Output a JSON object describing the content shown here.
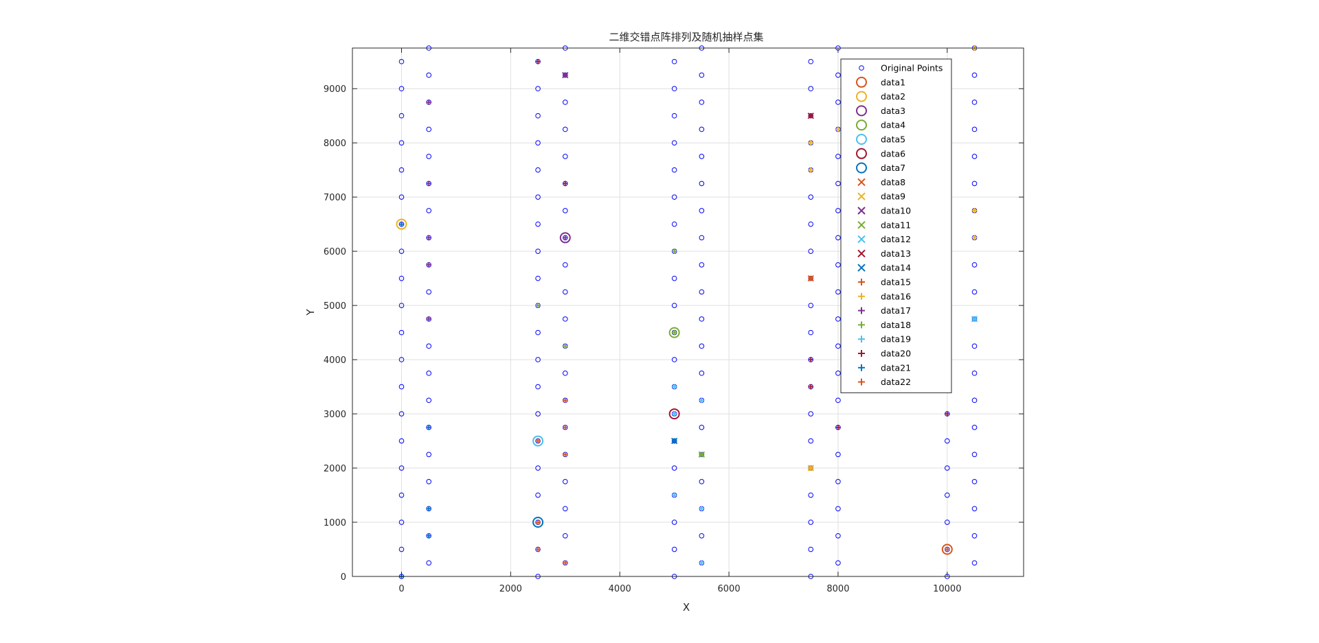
{
  "chart_data": {
    "type": "scatter",
    "title": "二维交错点阵排列及随机抽样点集",
    "xlabel": "X",
    "ylabel": "Y",
    "xlim": [
      -900,
      11400
    ],
    "ylim": [
      0,
      9750
    ],
    "xticks": [
      0,
      2000,
      4000,
      6000,
      8000,
      10000
    ],
    "yticks": [
      0,
      1000,
      2000,
      3000,
      4000,
      5000,
      6000,
      7000,
      8000,
      9000
    ],
    "grid": true,
    "legend_position": "top-right",
    "original_points": {
      "name": "Original Points",
      "color": "#0000ff",
      "columns_a_x": [
        0,
        2500,
        5000,
        7500,
        10000
      ],
      "columns_a_y_range": [
        0,
        9500,
        500
      ],
      "columns_b_x": [
        500,
        3000,
        5500,
        8000,
        10500
      ],
      "columns_b_y_range": [
        250,
        9750,
        500
      ]
    },
    "series": [
      {
        "name": "data1",
        "marker": "circle",
        "color": "#d95319",
        "points": [
          [
            10000,
            500
          ]
        ]
      },
      {
        "name": "data2",
        "marker": "circle",
        "color": "#edb120",
        "points": [
          [
            0,
            6500
          ]
        ]
      },
      {
        "name": "data3",
        "marker": "circle",
        "color": "#7e2f8e",
        "points": [
          [
            3000,
            6250
          ]
        ]
      },
      {
        "name": "data4",
        "marker": "circle",
        "color": "#77ac30",
        "points": [
          [
            5000,
            4500
          ]
        ]
      },
      {
        "name": "data5",
        "marker": "circle",
        "color": "#4dbeee",
        "points": [
          [
            2500,
            2500
          ]
        ]
      },
      {
        "name": "data6",
        "marker": "circle",
        "color": "#a2142f",
        "points": [
          [
            5000,
            3000
          ]
        ]
      },
      {
        "name": "data7",
        "marker": "circle",
        "color": "#0072bd",
        "points": [
          [
            2500,
            1000
          ]
        ]
      },
      {
        "name": "data8",
        "marker": "x",
        "color": "#d95319",
        "points": [
          [
            7500,
            5500
          ]
        ]
      },
      {
        "name": "data9",
        "marker": "x",
        "color": "#edb120",
        "points": [
          [
            7500,
            2000
          ]
        ]
      },
      {
        "name": "data10",
        "marker": "x",
        "color": "#7e2f8e",
        "points": [
          [
            3000,
            9250
          ]
        ]
      },
      {
        "name": "data11",
        "marker": "x",
        "color": "#77ac30",
        "points": [
          [
            5500,
            2250
          ]
        ]
      },
      {
        "name": "data12",
        "marker": "x",
        "color": "#4dbeee",
        "points": [
          [
            10500,
            4750
          ]
        ]
      },
      {
        "name": "data13",
        "marker": "x",
        "color": "#a2142f",
        "points": [
          [
            7500,
            8500
          ]
        ]
      },
      {
        "name": "data14",
        "marker": "x",
        "color": "#0072bd",
        "points": [
          [
            5000,
            2500
          ]
        ]
      },
      {
        "name": "data15",
        "marker": "plus",
        "color": "#d95319",
        "points": [
          [
            10000,
            500
          ],
          [
            2500,
            2500
          ],
          [
            2500,
            1000
          ]
        ]
      },
      {
        "name": "data16",
        "marker": "plus",
        "color": "#edb120",
        "points": [
          [
            10500,
            9750
          ],
          [
            7500,
            8000
          ],
          [
            8000,
            8250
          ],
          [
            7500,
            7500
          ],
          [
            10500,
            6750
          ],
          [
            10500,
            6250
          ],
          [
            7500,
            2000
          ]
        ]
      },
      {
        "name": "data17",
        "marker": "plus",
        "color": "#7e2f8e",
        "points": [
          [
            500,
            8750
          ],
          [
            500,
            7250
          ],
          [
            500,
            6250
          ],
          [
            500,
            5750
          ],
          [
            500,
            4750
          ],
          [
            3000,
            6250
          ],
          [
            3000,
            9250
          ]
        ]
      },
      {
        "name": "data18",
        "marker": "plus",
        "color": "#77ac30",
        "points": [
          [
            2500,
            5000
          ],
          [
            3000,
            4250
          ],
          [
            5000,
            6000
          ],
          [
            5000,
            4500
          ],
          [
            5500,
            2250
          ]
        ]
      },
      {
        "name": "data19",
        "marker": "plus",
        "color": "#4dbeee",
        "points": [
          [
            5000,
            3500
          ],
          [
            5500,
            3250
          ],
          [
            5000,
            1500
          ],
          [
            5500,
            1250
          ],
          [
            5500,
            250
          ],
          [
            10500,
            4750
          ],
          [
            5000,
            3000
          ]
        ]
      },
      {
        "name": "data20",
        "marker": "plus",
        "color": "#a2142f",
        "points": [
          [
            2500,
            9500
          ],
          [
            3000,
            7250
          ],
          [
            7500,
            8500
          ],
          [
            7500,
            4000
          ],
          [
            7500,
            3500
          ],
          [
            8000,
            2750
          ],
          [
            10000,
            3000
          ]
        ]
      },
      {
        "name": "data21",
        "marker": "plus",
        "color": "#0072bd",
        "points": [
          [
            0,
            6500
          ],
          [
            0,
            0
          ],
          [
            500,
            2750
          ],
          [
            500,
            1250
          ],
          [
            500,
            750
          ],
          [
            5000,
            2500
          ]
        ]
      },
      {
        "name": "data22",
        "marker": "plus",
        "color": "#d95319",
        "points": [
          [
            3000,
            3250
          ],
          [
            3000,
            2750
          ],
          [
            3000,
            2250
          ],
          [
            2500,
            500
          ],
          [
            3000,
            250
          ],
          [
            7500,
            5500
          ]
        ]
      }
    ]
  }
}
